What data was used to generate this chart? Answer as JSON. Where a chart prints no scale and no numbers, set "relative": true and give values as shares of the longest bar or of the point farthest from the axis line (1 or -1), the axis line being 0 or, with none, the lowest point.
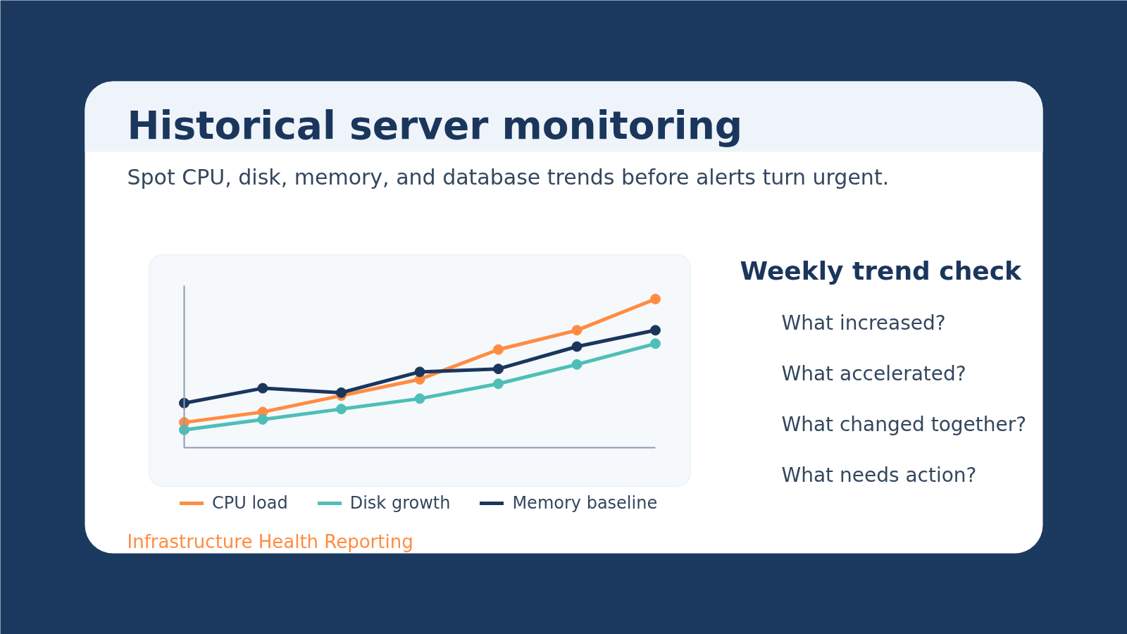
{
  "chart_data": {
    "type": "line",
    "title": "Historical server monitoring",
    "subtitle": "Spot CPU, disk, memory, and database trends before alerts turn urgent.",
    "categories": [
      null,
      null,
      null,
      null,
      null,
      null,
      null
    ],
    "relative": true,
    "marker": "circle",
    "line_style": "solid",
    "legend": "bottom",
    "series": [
      {
        "name": "CPU load",
        "color": "#ff8c42",
        "values": [
          0.17,
          0.24,
          0.35,
          0.46,
          0.66,
          0.79,
          1.0
        ]
      },
      {
        "name": "Disk growth",
        "color": "#4dbfb7",
        "values": [
          0.12,
          0.19,
          0.26,
          0.33,
          0.43,
          0.56,
          0.7
        ]
      },
      {
        "name": "Memory baseline",
        "color": "#1b365d",
        "values": [
          0.3,
          0.4,
          0.37,
          0.51,
          0.53,
          0.68,
          0.79
        ]
      }
    ],
    "annotations": [
      "Weekly trend check",
      "What increased?",
      "What accelerated?",
      "What changed together?",
      "What needs action?",
      "Infrastructure Health Reporting"
    ]
  }
}
